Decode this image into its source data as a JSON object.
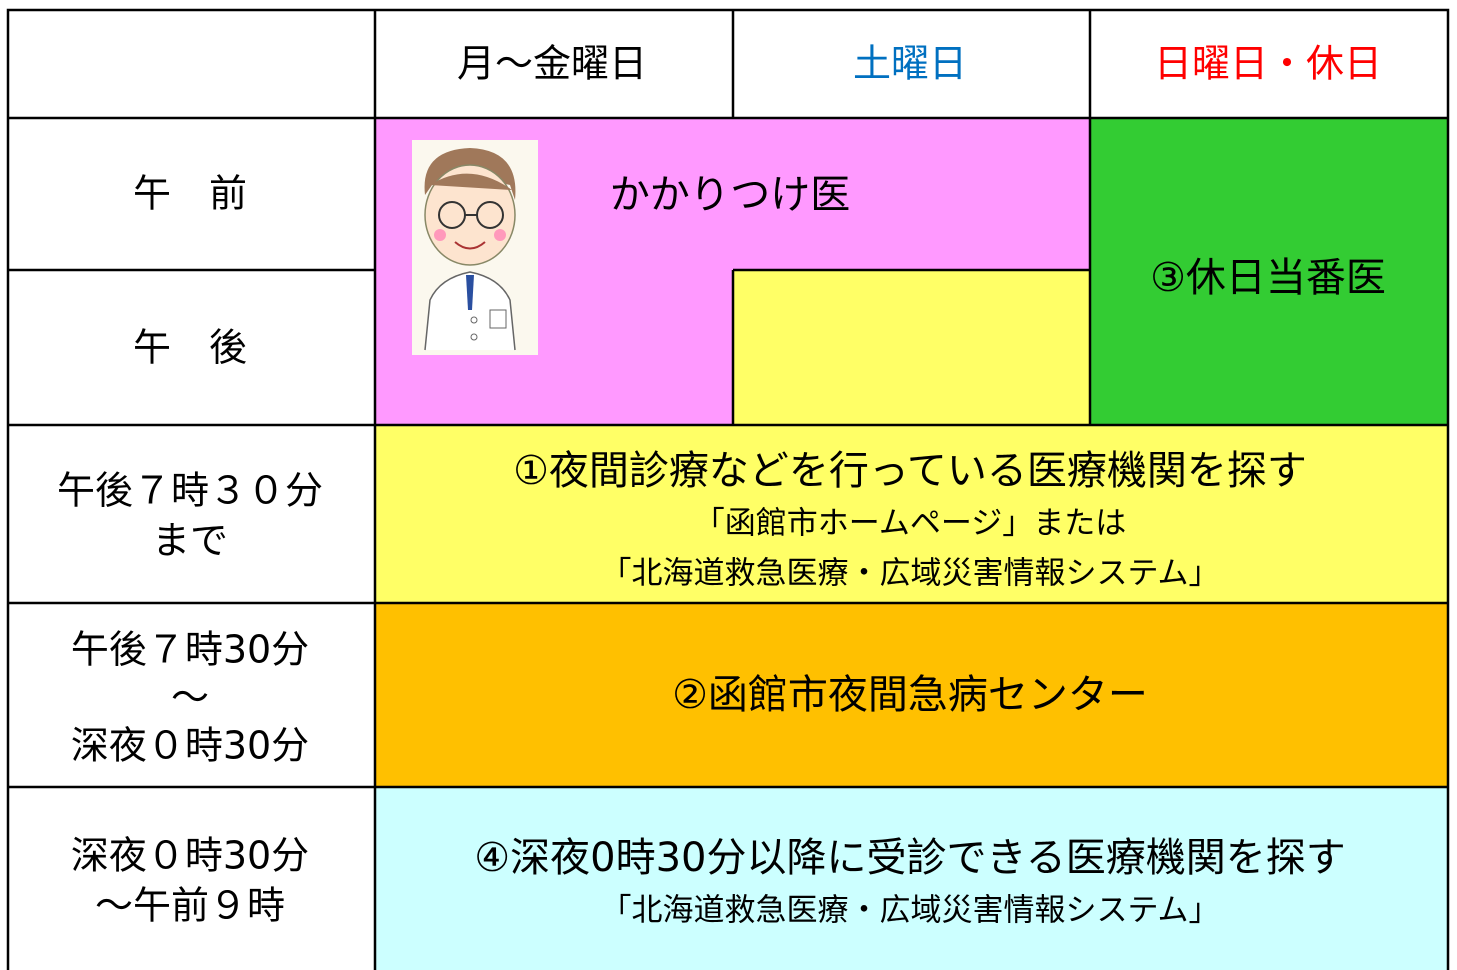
{
  "header": {
    "columns": [
      "月～金曜日",
      "土曜日",
      "日曜日・休日"
    ]
  },
  "rows": [
    {
      "label": [
        "午　前"
      ]
    },
    {
      "label": [
        "午　後"
      ]
    },
    {
      "label": [
        "午後７時３０分",
        "まで"
      ]
    },
    {
      "label": [
        "午後７時30分",
        "～",
        "深夜０時30分"
      ]
    },
    {
      "label": [
        "深夜０時30分",
        "～午前９時"
      ]
    }
  ],
  "cells": {
    "family_doctor": [
      "かかりつけ医"
    ],
    "holiday_doctor": [
      "③休日当番医"
    ],
    "night_clinic": [
      "①夜間診療などを行っている医療機関を探す",
      "「函館市ホームページ」または",
      "「北海道救急医療・広域災害情報システム」"
    ],
    "emergency_center": [
      "②函館市夜間急病センター"
    ],
    "late_night": [
      "④深夜0時30分以降に受診できる医療機関を探す",
      "「北海道救急医療・広域災害情報システム」"
    ]
  }
}
